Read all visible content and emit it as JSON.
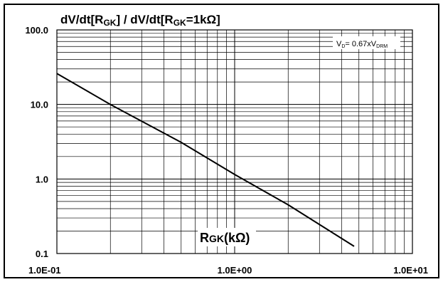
{
  "chart_data": {
    "type": "line",
    "title": {
      "prefix": "dV/dt[R",
      "sub1": "GK",
      "middle": "] / dV/dt[R",
      "sub2": "GK",
      "suffix": "=1kΩ]"
    },
    "xlabel": {
      "main": "R",
      "sub": "GK",
      "rest": "(kΩ)"
    },
    "ylabel": "",
    "x_scale": "log",
    "y_scale": "log",
    "xlim": [
      0.1,
      10
    ],
    "ylim": [
      0.1,
      100
    ],
    "x_tick_labels": [
      {
        "value": 0.1,
        "label": "1.0E-01"
      },
      {
        "value": 1,
        "label": "1.0E+00"
      },
      {
        "value": 10,
        "label": "1.0E+01"
      }
    ],
    "y_tick_labels": [
      {
        "value": 100,
        "label": "100.0"
      },
      {
        "value": 10,
        "label": "10.0"
      },
      {
        "value": 1,
        "label": "1.0"
      },
      {
        "value": 0.1,
        "label": "0.1"
      }
    ],
    "grid": true,
    "annotation": {
      "v1": "V",
      "v1_sub": "D",
      "mid": "= 0.67xV",
      "v2_sub": "DRM"
    },
    "series": [
      {
        "color": "#000000",
        "x": [
          0.1,
          0.2,
          0.5,
          1.0,
          2.0,
          4.7
        ],
        "y": [
          26,
          10,
          3.1,
          1.15,
          0.45,
          0.125
        ]
      }
    ]
  }
}
